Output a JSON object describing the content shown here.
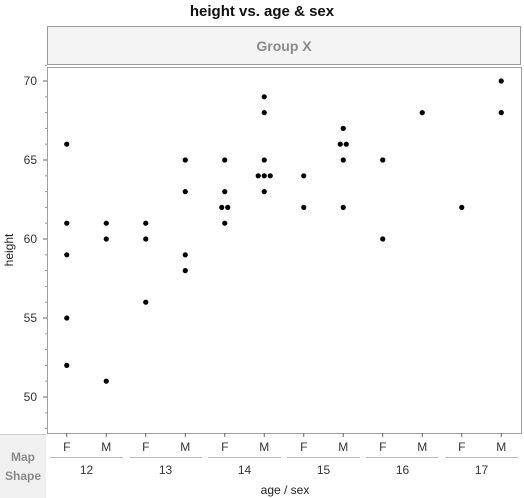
{
  "chart_data": {
    "type": "scatter",
    "title": "height vs. age & sex",
    "group_label": "Group X",
    "xlabel": "age / sex",
    "ylabel": "height",
    "ylim": [
      47.5,
      71
    ],
    "yticks": [
      50,
      55,
      60,
      65,
      70
    ],
    "grid": false,
    "point_color": "#000000",
    "x_groups": [
      {
        "age": "12",
        "sexes": [
          "F",
          "M"
        ]
      },
      {
        "age": "13",
        "sexes": [
          "F",
          "M"
        ]
      },
      {
        "age": "14",
        "sexes": [
          "F",
          "M"
        ]
      },
      {
        "age": "15",
        "sexes": [
          "F",
          "M"
        ]
      },
      {
        "age": "16",
        "sexes": [
          "F",
          "M"
        ]
      },
      {
        "age": "17",
        "sexes": [
          "F",
          "M"
        ]
      }
    ],
    "points": [
      {
        "age": "12",
        "sex": "F",
        "height": 66
      },
      {
        "age": "12",
        "sex": "F",
        "height": 61
      },
      {
        "age": "12",
        "sex": "F",
        "height": 59
      },
      {
        "age": "12",
        "sex": "F",
        "height": 55
      },
      {
        "age": "12",
        "sex": "F",
        "height": 52
      },
      {
        "age": "12",
        "sex": "M",
        "height": 61
      },
      {
        "age": "12",
        "sex": "M",
        "height": 60
      },
      {
        "age": "12",
        "sex": "M",
        "height": 51
      },
      {
        "age": "13",
        "sex": "F",
        "height": 61
      },
      {
        "age": "13",
        "sex": "F",
        "height": 60
      },
      {
        "age": "13",
        "sex": "F",
        "height": 56
      },
      {
        "age": "13",
        "sex": "M",
        "height": 65
      },
      {
        "age": "13",
        "sex": "M",
        "height": 63
      },
      {
        "age": "13",
        "sex": "M",
        "height": 59
      },
      {
        "age": "13",
        "sex": "M",
        "height": 58
      },
      {
        "age": "14",
        "sex": "F",
        "height": 65
      },
      {
        "age": "14",
        "sex": "F",
        "height": 63
      },
      {
        "age": "14",
        "sex": "F",
        "height": 62
      },
      {
        "age": "14",
        "sex": "F",
        "height": 62
      },
      {
        "age": "14",
        "sex": "F",
        "height": 61
      },
      {
        "age": "14",
        "sex": "M",
        "height": 69
      },
      {
        "age": "14",
        "sex": "M",
        "height": 68
      },
      {
        "age": "14",
        "sex": "M",
        "height": 65
      },
      {
        "age": "14",
        "sex": "M",
        "height": 64
      },
      {
        "age": "14",
        "sex": "M",
        "height": 64
      },
      {
        "age": "14",
        "sex": "M",
        "height": 64
      },
      {
        "age": "14",
        "sex": "M",
        "height": 63
      },
      {
        "age": "15",
        "sex": "F",
        "height": 64
      },
      {
        "age": "15",
        "sex": "F",
        "height": 62
      },
      {
        "age": "15",
        "sex": "M",
        "height": 67
      },
      {
        "age": "15",
        "sex": "M",
        "height": 66
      },
      {
        "age": "15",
        "sex": "M",
        "height": 66
      },
      {
        "age": "15",
        "sex": "M",
        "height": 65
      },
      {
        "age": "15",
        "sex": "M",
        "height": 62
      },
      {
        "age": "16",
        "sex": "F",
        "height": 65
      },
      {
        "age": "16",
        "sex": "F",
        "height": 60
      },
      {
        "age": "16",
        "sex": "M",
        "height": 68
      },
      {
        "age": "17",
        "sex": "F",
        "height": 62
      },
      {
        "age": "17",
        "sex": "M",
        "height": 70
      },
      {
        "age": "17",
        "sex": "M",
        "height": 68
      }
    ]
  },
  "map_shape": {
    "line1": "Map",
    "line2": "Shape"
  }
}
